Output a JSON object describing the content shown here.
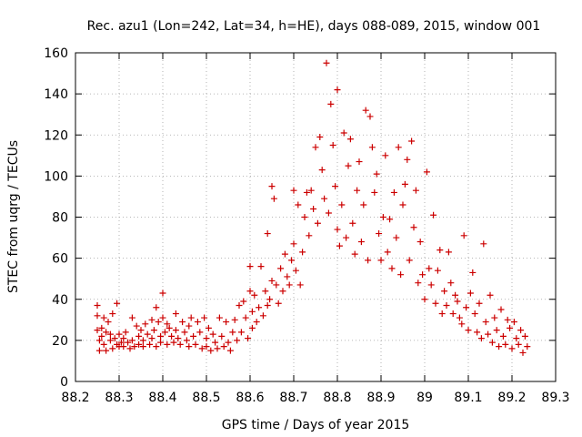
{
  "chart_data": {
    "type": "scatter",
    "title": "Rec. azu1 (Lon=242, Lat=34, h=HE), days 088-089, 2015, window 001",
    "xlabel": "GPS time / Days of year 2015",
    "ylabel": "STEC from uqrg / TECUs",
    "xlim": [
      88.2,
      89.3
    ],
    "ylim": [
      0,
      160
    ],
    "xticks": [
      88.2,
      88.3,
      88.4,
      88.5,
      88.6,
      88.7,
      88.8,
      88.9,
      89.0,
      89.1,
      89.2,
      89.3
    ],
    "xtick_labels": [
      "88.2",
      "88.3",
      "88.4",
      "88.5",
      "88.6",
      "88.7",
      "88.8",
      "88.9",
      "89",
      "89.1",
      "89.2",
      "89.3"
    ],
    "yticks": [
      0,
      20,
      40,
      60,
      80,
      100,
      120,
      140,
      160
    ],
    "ytick_labels": [
      "0",
      "20",
      "40",
      "60",
      "80",
      "100",
      "120",
      "140",
      "160"
    ],
    "grid": true,
    "marker": "+",
    "color": "#cc0000",
    "series": [
      {
        "name": "STEC",
        "points": [
          [
            88.25,
            37
          ],
          [
            88.25,
            32
          ],
          [
            88.25,
            25
          ],
          [
            88.255,
            20
          ],
          [
            88.255,
            15
          ],
          [
            88.26,
            26
          ],
          [
            88.26,
            22
          ],
          [
            88.265,
            31
          ],
          [
            88.265,
            18
          ],
          [
            88.27,
            24
          ],
          [
            88.27,
            15
          ],
          [
            88.275,
            29
          ],
          [
            88.28,
            23
          ],
          [
            88.28,
            20
          ],
          [
            88.285,
            33
          ],
          [
            88.285,
            16
          ],
          [
            88.29,
            21
          ],
          [
            88.295,
            38
          ],
          [
            88.295,
            18
          ],
          [
            88.3,
            23
          ],
          [
            88.3,
            17
          ],
          [
            88.305,
            19
          ],
          [
            88.31,
            21
          ],
          [
            88.31,
            17
          ],
          [
            88.315,
            24
          ],
          [
            88.32,
            19
          ],
          [
            88.325,
            16
          ],
          [
            88.33,
            31
          ],
          [
            88.33,
            20
          ],
          [
            88.335,
            17
          ],
          [
            88.34,
            27
          ],
          [
            88.345,
            22
          ],
          [
            88.345,
            18
          ],
          [
            88.35,
            25
          ],
          [
            88.355,
            20
          ],
          [
            88.355,
            17
          ],
          [
            88.36,
            28
          ],
          [
            88.365,
            23
          ],
          [
            88.37,
            18
          ],
          [
            88.375,
            30
          ],
          [
            88.375,
            21
          ],
          [
            88.38,
            25
          ],
          [
            88.385,
            36
          ],
          [
            88.385,
            17
          ],
          [
            88.39,
            29
          ],
          [
            88.395,
            22
          ],
          [
            88.395,
            19
          ],
          [
            88.4,
            43
          ],
          [
            88.4,
            31
          ],
          [
            88.405,
            24
          ],
          [
            88.41,
            28
          ],
          [
            88.41,
            18
          ],
          [
            88.415,
            26
          ],
          [
            88.42,
            22
          ],
          [
            88.425,
            19
          ],
          [
            88.43,
            33
          ],
          [
            88.43,
            25
          ],
          [
            88.435,
            21
          ],
          [
            88.44,
            18
          ],
          [
            88.445,
            29
          ],
          [
            88.45,
            24
          ],
          [
            88.455,
            20
          ],
          [
            88.46,
            27
          ],
          [
            88.46,
            17
          ],
          [
            88.465,
            31
          ],
          [
            88.47,
            22
          ],
          [
            88.475,
            18
          ],
          [
            88.48,
            29
          ],
          [
            88.485,
            24
          ],
          [
            88.49,
            16
          ],
          [
            88.495,
            31
          ],
          [
            88.5,
            21
          ],
          [
            88.5,
            17
          ],
          [
            88.505,
            26
          ],
          [
            88.51,
            15
          ],
          [
            88.515,
            23
          ],
          [
            88.52,
            19
          ],
          [
            88.525,
            16
          ],
          [
            88.53,
            31
          ],
          [
            88.535,
            22
          ],
          [
            88.54,
            17
          ],
          [
            88.545,
            29
          ],
          [
            88.55,
            19
          ],
          [
            88.555,
            15
          ],
          [
            88.56,
            24
          ],
          [
            88.565,
            30
          ],
          [
            88.57,
            20
          ],
          [
            88.575,
            37
          ],
          [
            88.58,
            24
          ],
          [
            88.585,
            39
          ],
          [
            88.59,
            31
          ],
          [
            88.595,
            21
          ],
          [
            88.6,
            56
          ],
          [
            88.6,
            44
          ],
          [
            88.605,
            34
          ],
          [
            88.605,
            26
          ],
          [
            88.61,
            42
          ],
          [
            88.615,
            29
          ],
          [
            88.62,
            36
          ],
          [
            88.625,
            56
          ],
          [
            88.63,
            32
          ],
          [
            88.635,
            44
          ],
          [
            88.64,
            72
          ],
          [
            88.64,
            37
          ],
          [
            88.645,
            40
          ],
          [
            88.65,
            95
          ],
          [
            88.65,
            49
          ],
          [
            88.655,
            89
          ],
          [
            88.66,
            47
          ],
          [
            88.665,
            38
          ],
          [
            88.67,
            55
          ],
          [
            88.675,
            44
          ],
          [
            88.68,
            62
          ],
          [
            88.685,
            51
          ],
          [
            88.69,
            47
          ],
          [
            88.695,
            59
          ],
          [
            88.7,
            93
          ],
          [
            88.7,
            67
          ],
          [
            88.705,
            54
          ],
          [
            88.71,
            86
          ],
          [
            88.715,
            47
          ],
          [
            88.72,
            63
          ],
          [
            88.725,
            80
          ],
          [
            88.73,
            92
          ],
          [
            88.735,
            71
          ],
          [
            88.74,
            93
          ],
          [
            88.745,
            84
          ],
          [
            88.75,
            114
          ],
          [
            88.755,
            77
          ],
          [
            88.76,
            119
          ],
          [
            88.765,
            103
          ],
          [
            88.77,
            89
          ],
          [
            88.775,
            155
          ],
          [
            88.78,
            82
          ],
          [
            88.785,
            135
          ],
          [
            88.79,
            115
          ],
          [
            88.795,
            95
          ],
          [
            88.8,
            142
          ],
          [
            88.8,
            74
          ],
          [
            88.805,
            66
          ],
          [
            88.81,
            86
          ],
          [
            88.815,
            121
          ],
          [
            88.82,
            70
          ],
          [
            88.825,
            105
          ],
          [
            88.83,
            118
          ],
          [
            88.835,
            77
          ],
          [
            88.84,
            62
          ],
          [
            88.845,
            93
          ],
          [
            88.85,
            107
          ],
          [
            88.855,
            68
          ],
          [
            88.86,
            86
          ],
          [
            88.865,
            132
          ],
          [
            88.87,
            59
          ],
          [
            88.875,
            129
          ],
          [
            88.88,
            114
          ],
          [
            88.885,
            92
          ],
          [
            88.89,
            101
          ],
          [
            88.895,
            72
          ],
          [
            88.9,
            59
          ],
          [
            88.905,
            80
          ],
          [
            88.91,
            110
          ],
          [
            88.915,
            63
          ],
          [
            88.92,
            79
          ],
          [
            88.925,
            55
          ],
          [
            88.93,
            92
          ],
          [
            88.935,
            70
          ],
          [
            88.94,
            114
          ],
          [
            88.945,
            52
          ],
          [
            88.95,
            86
          ],
          [
            88.955,
            96
          ],
          [
            88.96,
            108
          ],
          [
            88.965,
            59
          ],
          [
            88.97,
            117
          ],
          [
            88.975,
            75
          ],
          [
            88.98,
            93
          ],
          [
            88.985,
            48
          ],
          [
            88.99,
            68
          ],
          [
            88.995,
            52
          ],
          [
            89.0,
            40
          ],
          [
            89.005,
            102
          ],
          [
            89.01,
            55
          ],
          [
            89.015,
            47
          ],
          [
            89.02,
            81
          ],
          [
            89.025,
            38
          ],
          [
            89.03,
            54
          ],
          [
            89.035,
            64
          ],
          [
            89.04,
            33
          ],
          [
            89.045,
            44
          ],
          [
            89.05,
            37
          ],
          [
            89.055,
            63
          ],
          [
            89.06,
            48
          ],
          [
            89.065,
            33
          ],
          [
            89.07,
            42
          ],
          [
            89.075,
            39
          ],
          [
            89.08,
            31
          ],
          [
            89.085,
            28
          ],
          [
            89.09,
            71
          ],
          [
            89.095,
            36
          ],
          [
            89.1,
            25
          ],
          [
            89.105,
            43
          ],
          [
            89.11,
            53
          ],
          [
            89.115,
            33
          ],
          [
            89.12,
            24
          ],
          [
            89.125,
            38
          ],
          [
            89.13,
            21
          ],
          [
            89.135,
            67
          ],
          [
            89.14,
            29
          ],
          [
            89.145,
            23
          ],
          [
            89.15,
            42
          ],
          [
            89.155,
            19
          ],
          [
            89.16,
            31
          ],
          [
            89.165,
            25
          ],
          [
            89.17,
            17
          ],
          [
            89.175,
            35
          ],
          [
            89.18,
            22
          ],
          [
            89.185,
            18
          ],
          [
            89.19,
            30
          ],
          [
            89.195,
            26
          ],
          [
            89.2,
            16
          ],
          [
            89.205,
            29
          ],
          [
            89.21,
            21
          ],
          [
            89.215,
            18
          ],
          [
            89.22,
            25
          ],
          [
            89.225,
            14
          ],
          [
            89.23,
            22
          ],
          [
            89.235,
            17
          ]
        ]
      }
    ]
  }
}
